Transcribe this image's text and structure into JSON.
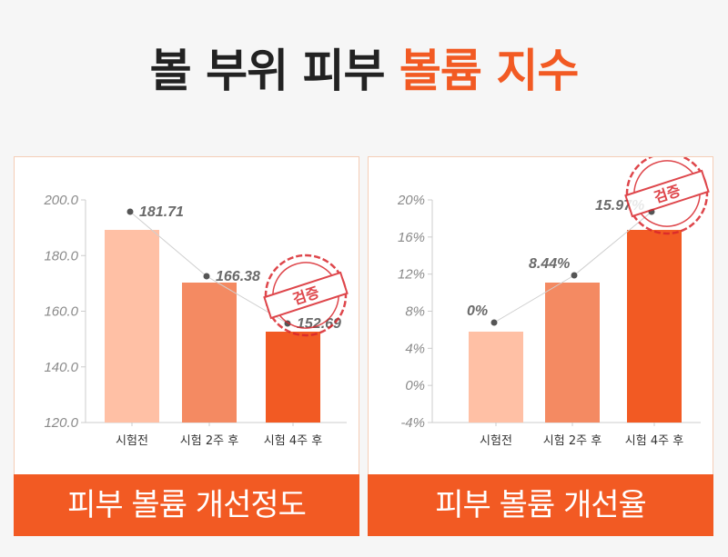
{
  "title": {
    "part1": "볼 부위 피부 ",
    "part2": "볼륨 지수"
  },
  "colors": {
    "accent": "#f25a23",
    "bar_light": "#ffc0a5",
    "bar_mid": "#f48a62",
    "bar_dark": "#f25a23",
    "stamp": "#d9262c"
  },
  "stamp_label": "검증",
  "chart_data": [
    {
      "type": "bar",
      "title": "피부 볼륨 개선정도",
      "categories": [
        "시험전",
        "시험 2주 후",
        "시험 4주 후"
      ],
      "values": [
        181.71,
        166.38,
        152.69
      ],
      "value_labels": [
        "181.71",
        "166.38",
        "152.69"
      ],
      "ylim": [
        120.0,
        200.0
      ],
      "yticks": [
        "200.0",
        "180.0",
        "160.0",
        "140.0",
        "120.0"
      ],
      "grid": false,
      "stamp_on": 2
    },
    {
      "type": "bar",
      "title": "피부 볼륨 개선율",
      "categories": [
        "시험전",
        "시험 2주 후",
        "시험 4주 후"
      ],
      "values": [
        0,
        8.44,
        15.97
      ],
      "value_labels": [
        "0%",
        "8.44%",
        "15.97%"
      ],
      "ylim": [
        -4,
        20
      ],
      "yticks": [
        "20%",
        "16%",
        "12%",
        "8%",
        "4%",
        "0%",
        "-4%"
      ],
      "grid": false,
      "stamp_on": 2
    }
  ]
}
